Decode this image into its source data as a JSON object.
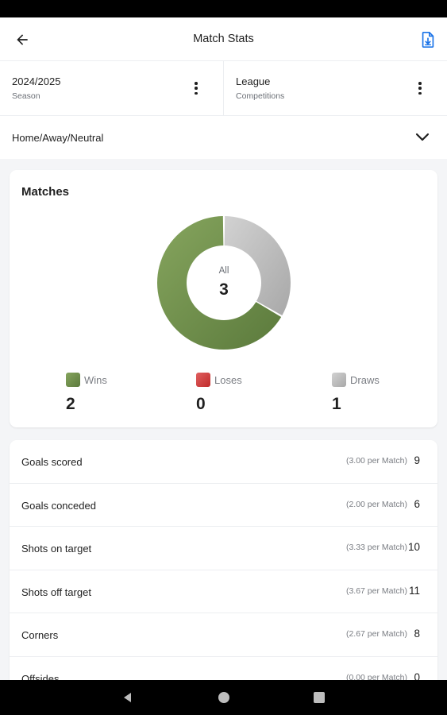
{
  "app_bar": {
    "title": "Match Stats",
    "back_icon": "arrow-back-icon",
    "export_icon": "file-download-icon",
    "accent_color": "#1a73e8"
  },
  "filters": {
    "season": {
      "value": "2024/2025",
      "label": "Season"
    },
    "competition": {
      "value": "League",
      "label": "Competitions"
    },
    "venue": {
      "value": "Home/Away/Neutral"
    }
  },
  "matches": {
    "title": "Matches",
    "center_label": "All",
    "total": "3",
    "chart_data": {
      "type": "pie",
      "categories": [
        "Wins",
        "Loses",
        "Draws"
      ],
      "values": [
        2,
        0,
        1
      ],
      "colors": [
        "#6f8e4a",
        "#d23a3a",
        "#b5b5b5"
      ]
    },
    "legend": [
      {
        "name": "Wins",
        "value": "2",
        "color": "#6f8e4a"
      },
      {
        "name": "Loses",
        "value": "0",
        "color": "#d23a3a"
      },
      {
        "name": "Draws",
        "value": "1",
        "color": "#b5b5b5"
      }
    ]
  },
  "stats": [
    {
      "name": "Goals scored",
      "per_match": "(3.00 per Match)",
      "value": "9"
    },
    {
      "name": "Goals conceded",
      "per_match": "(2.00 per Match)",
      "value": "6"
    },
    {
      "name": "Shots on target",
      "per_match": "(3.33 per Match)",
      "value": "10"
    },
    {
      "name": "Shots off target",
      "per_match": "(3.67 per Match)",
      "value": "11"
    },
    {
      "name": "Corners",
      "per_match": "(2.67 per Match)",
      "value": "8"
    },
    {
      "name": "Offsides",
      "per_match": "(0.00 per Match)",
      "value": "0"
    }
  ]
}
